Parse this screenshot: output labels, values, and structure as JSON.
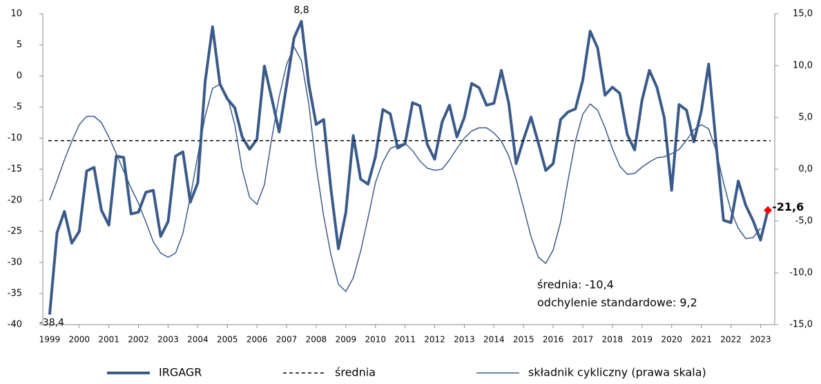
{
  "chart_data": {
    "type": "line",
    "x": [
      1999,
      1999.25,
      1999.5,
      1999.75,
      2000,
      2000.25,
      2000.5,
      2000.75,
      2001,
      2001.25,
      2001.5,
      2001.75,
      2002,
      2002.25,
      2002.5,
      2002.75,
      2003,
      2003.25,
      2003.5,
      2003.75,
      2004,
      2004.25,
      2004.5,
      2004.75,
      2005,
      2005.25,
      2005.5,
      2005.75,
      2006,
      2006.25,
      2006.5,
      2006.75,
      2007,
      2007.25,
      2007.5,
      2007.75,
      2008,
      2008.25,
      2008.5,
      2008.75,
      2009,
      2009.25,
      2009.5,
      2009.75,
      2010,
      2010.25,
      2010.5,
      2010.75,
      2011,
      2011.25,
      2011.5,
      2011.75,
      2012,
      2012.25,
      2012.5,
      2012.75,
      2013,
      2013.25,
      2013.5,
      2013.75,
      2014,
      2014.25,
      2014.5,
      2014.75,
      2015,
      2015.25,
      2015.5,
      2015.75,
      2016,
      2016.25,
      2016.5,
      2016.75,
      2017,
      2017.25,
      2017.5,
      2017.75,
      2018,
      2018.25,
      2018.5,
      2018.75,
      2019,
      2019.25,
      2019.5,
      2019.75,
      2020,
      2020.25,
      2020.5,
      2020.75,
      2021,
      2021.25,
      2021.5,
      2021.75,
      2022,
      2022.25,
      2022.5,
      2022.75,
      2023,
      2023.25
    ],
    "series": [
      {
        "name": "IRGAGR",
        "color": "#3a5a8a",
        "width": 4,
        "values": [
          -38.4,
          -25.2,
          -21.8,
          -26.9,
          -25,
          -15.3,
          -14.7,
          -21.6,
          -24,
          -12.9,
          -13.1,
          -22.2,
          -21.9,
          -18.7,
          -18.4,
          -25.8,
          -23.4,
          -12.9,
          -12.2,
          -20.3,
          -17.2,
          -0.9,
          7.9,
          -1.3,
          -3.7,
          -5.1,
          -9.8,
          -11.8,
          -10.2,
          1.6,
          -3.6,
          -9,
          -1.5,
          6.1,
          8.8,
          -1.3,
          -7.8,
          -7,
          -18.3,
          -27.8,
          -22,
          -9.6,
          -16.6,
          -17.4,
          -13,
          -5.4,
          -6.1,
          -11.6,
          -10.9,
          -4.3,
          -4.8,
          -11,
          -13.4,
          -7.4,
          -4.7,
          -9.8,
          -6.7,
          -1.2,
          -1.9,
          -4.7,
          -4.4,
          0.9,
          -4.4,
          -14.1,
          -10.2,
          -6.6,
          -10.8,
          -15.2,
          -14.1,
          -7,
          -5.8,
          -5.3,
          -0.7,
          7.2,
          4.5,
          -3.1,
          -1.8,
          -2.8,
          -9.4,
          -11.9,
          -3.9,
          0.9,
          -1.8,
          -6.7,
          -18.4,
          -4.6,
          -5.5,
          -10.6,
          -5.7,
          1.9,
          -11,
          -23.2,
          -23.6,
          -16.9,
          -20.8,
          -23.3,
          -26.4,
          -21.6
        ],
        "value_labels": [
          "-38,4",
          null,
          null,
          null,
          null,
          null,
          null,
          null,
          null,
          null,
          null,
          null,
          null,
          null,
          null,
          null,
          null,
          null,
          null,
          null,
          null,
          null,
          null,
          null,
          null,
          null,
          null,
          null,
          null,
          null,
          null,
          null,
          null,
          null,
          "8,8",
          null,
          null,
          null,
          null,
          null,
          null,
          null,
          null,
          null,
          null,
          null,
          null,
          null,
          null,
          null,
          null,
          null,
          null,
          null,
          null,
          null,
          null,
          null,
          null,
          null,
          null,
          null,
          null,
          null,
          null,
          null,
          null,
          null,
          null,
          null,
          null,
          null,
          null,
          null,
          null,
          null,
          null,
          null,
          null,
          null,
          null,
          null,
          null,
          null,
          null,
          null,
          null,
          null,
          null,
          null,
          null,
          null,
          null,
          null,
          null,
          null,
          null,
          "-21,6"
        ],
        "last_color": "#ff0000"
      },
      {
        "name": "średnia",
        "color": "#000000",
        "dash": true,
        "value": -10.4
      },
      {
        "name": "składnik cykliczny (prawa skala)",
        "color": "#3a5a8a",
        "width": 1.5,
        "axis": "y2",
        "values": [
          -3,
          -1.1,
          0.9,
          2.7,
          4.3,
          5.1,
          5.1,
          4.5,
          3.1,
          1.5,
          -0.2,
          -1.8,
          -3.3,
          -5.1,
          -7,
          -8.1,
          -8.5,
          -8.1,
          -6.2,
          -2.7,
          1.3,
          5.1,
          7.8,
          8.2,
          7,
          4.3,
          0,
          -2.7,
          -3.4,
          -1.5,
          3,
          7,
          10.1,
          11.8,
          10.5,
          6.3,
          0.3,
          -4.5,
          -8.3,
          -11.1,
          -11.8,
          -10.5,
          -7.9,
          -4.7,
          -1.3,
          0.7,
          2,
          2.3,
          2.5,
          1.8,
          0.8,
          0.1,
          -0.1,
          0,
          0.9,
          2,
          3,
          3.7,
          4,
          4,
          3.5,
          2.7,
          1.3,
          -1,
          -3.7,
          -6.5,
          -8.5,
          -9.1,
          -7.8,
          -5.1,
          -1.1,
          2.7,
          5.3,
          6.3,
          5.7,
          4,
          2,
          0.3,
          -0.5,
          -0.4,
          0.2,
          0.7,
          1.1,
          1.2,
          1.5,
          1.9,
          2.8,
          3.8,
          4.3,
          3.9,
          1.8,
          -1.3,
          -4,
          -5.7,
          -6.7,
          -6.6,
          -5.7,
          null
        ]
      }
    ],
    "annotations": [
      "średnia: -10,4",
      "odchylenie standardowe: 9,2"
    ],
    "xlim": [
      1998.77,
      2023.48
    ],
    "xticks": [
      1999,
      2000,
      2001,
      2002,
      2003,
      2004,
      2005,
      2006,
      2007,
      2008,
      2009,
      2010,
      2011,
      2012,
      2013,
      2014,
      2015,
      2016,
      2017,
      2018,
      2019,
      2020,
      2021,
      2022,
      2023
    ],
    "ylim": [
      -40,
      10
    ],
    "yticks": [
      10,
      5,
      0,
      -5,
      -10,
      -15,
      -20,
      -25,
      -30,
      -35,
      -40
    ],
    "y2lim": [
      -15,
      15
    ],
    "y2ticks": [
      {
        "value": 15,
        "label": "15,0"
      },
      {
        "value": 10,
        "label": "10,0"
      },
      {
        "value": 5,
        "label": "5,0"
      },
      {
        "value": 0,
        "label": "0,0"
      },
      {
        "value": -5,
        "label": "-5,0"
      },
      {
        "value": -10,
        "label": "-10,0"
      },
      {
        "value": -15,
        "label": "-15,0"
      }
    ],
    "legend": "bottom"
  }
}
